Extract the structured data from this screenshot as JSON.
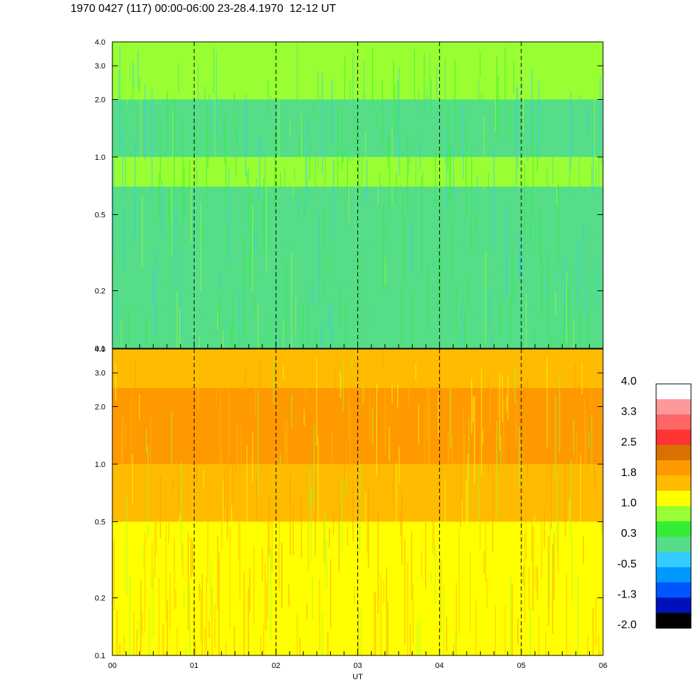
{
  "title": "1970 0427 (117) 00:00-06:00 23-28.4.1970  12-12 UT",
  "chart_data": [
    {
      "type": "heatmap",
      "panel": "upper",
      "x_range": [
        "00",
        "06"
      ],
      "y_scale": "log",
      "y_range": [
        0.1,
        4.0
      ],
      "y_ticks": [
        {
          "value": 0.1,
          "label": "0.1"
        },
        {
          "value": 0.2,
          "label": "0.2"
        },
        {
          "value": 0.5,
          "label": "0.5"
        },
        {
          "value": 1.0,
          "label": "1.0"
        },
        {
          "value": 2.0,
          "label": "2.0"
        },
        {
          "value": 3.0,
          "label": "3.0"
        },
        {
          "value": 4.0,
          "label": "4.0"
        }
      ],
      "dominant_levels": "0.3 to 1.0 (green / cyan), band near 0.8 at about 1.0"
    },
    {
      "type": "heatmap",
      "panel": "lower",
      "x_range": [
        "00",
        "06"
      ],
      "y_scale": "log",
      "y_range": [
        0.1,
        4.0
      ],
      "y_ticks": [
        {
          "value": 0.1,
          "label": "0.1"
        },
        {
          "value": 0.2,
          "label": "0.2"
        },
        {
          "value": 0.5,
          "label": "0.5"
        },
        {
          "value": 1.0,
          "label": "1.0"
        },
        {
          "value": 2.0,
          "label": "2.0"
        },
        {
          "value": 3.0,
          "label": "3.0"
        },
        {
          "value": 4.0,
          "label": "4.0"
        }
      ],
      "dominant_levels": "1.0 to 1.8 (yellow / orange)"
    }
  ],
  "x_axis": {
    "label": "UT",
    "ticks": [
      "00",
      "01",
      "02",
      "03",
      "04",
      "05",
      "06"
    ],
    "dashed_lines_at": [
      "01",
      "02",
      "03",
      "04",
      "05"
    ]
  },
  "colorbar": {
    "labels": [
      "4.0",
      "3.3",
      "2.5",
      "1.8",
      "1.0",
      "0.3",
      "-0.5",
      "-1.3",
      "-2.0"
    ],
    "colors_top_to_bottom": [
      "#ffffff",
      "#ff9999",
      "#ff6666",
      "#ff3333",
      "#d97000",
      "#ff9900",
      "#ffbb00",
      "#ffff00",
      "#99ff33",
      "#33ee33",
      "#55dd88",
      "#33ccff",
      "#0099ff",
      "#0055ff",
      "#0011bb",
      "#000000"
    ]
  }
}
